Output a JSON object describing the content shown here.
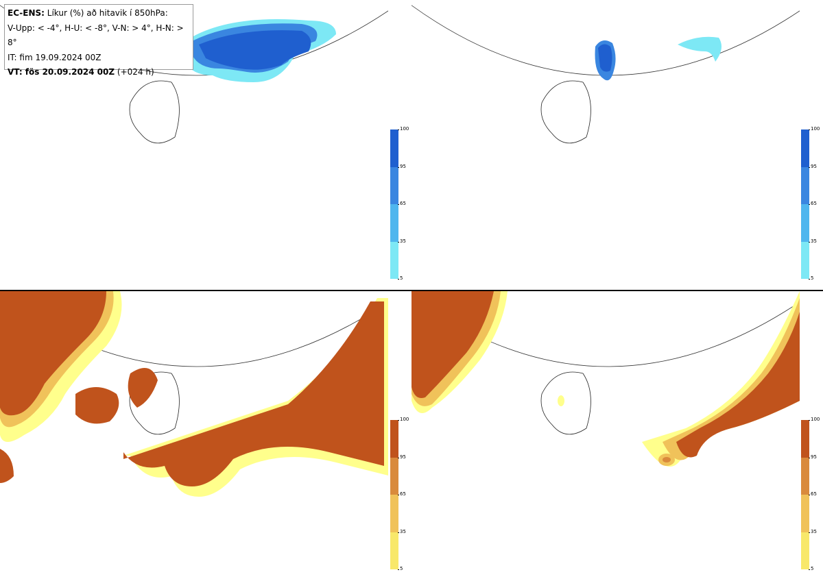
{
  "legend": {
    "line1_bold": "EC-ENS:",
    "line1_rest": " Líkur (%) að hitavik í 850hPa:",
    "line2": "V-Upp: < -4°, H-U: < -8°, V-N: > 4°, H-N: > 8°",
    "line3": "IT: fim 19.09.2024 00Z",
    "line4_bold": "VT: fös 20.09.2024 00Z",
    "line4_rest": " (+024 h)"
  },
  "colorbars": {
    "cold": {
      "ticks": [
        "100",
        "95",
        "65",
        "35",
        "5"
      ],
      "colors": [
        "#1f5fcf",
        "#3a86e0",
        "#4fb6ee",
        "#7de8f5",
        "#c9fbfd"
      ]
    },
    "warm": {
      "ticks": [
        "100",
        "95",
        "65",
        "35",
        "5"
      ],
      "colors": [
        "#c0531c",
        "#d98a3c",
        "#f0c25a",
        "#f8e86a",
        "#ffff8c"
      ]
    }
  },
  "panels": [
    {
      "id": "top-left",
      "variable": "V-Upp",
      "threshold": "< -4°"
    },
    {
      "id": "top-right",
      "variable": "H-U",
      "threshold": "< -8°"
    },
    {
      "id": "bottom-left",
      "variable": "V-N",
      "threshold": "> 4°"
    },
    {
      "id": "bottom-right",
      "variable": "H-N",
      "threshold": "> 8°"
    }
  ]
}
